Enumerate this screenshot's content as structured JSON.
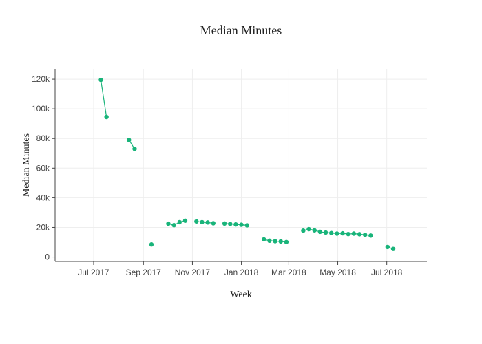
{
  "chart_data": {
    "type": "line",
    "title": "Median Minutes",
    "xlabel": "Week",
    "ylabel": "Median Minutes",
    "color": "#19b47a",
    "grid": true,
    "legend": "none",
    "xlim": [
      "2017-05-14",
      "2018-08-20"
    ],
    "ylim": [
      -3000,
      127000
    ],
    "x_ticks": [
      {
        "date": "2017-07-01",
        "label": "Jul 2017"
      },
      {
        "date": "2017-09-01",
        "label": "Sep 2017"
      },
      {
        "date": "2017-11-01",
        "label": "Nov 2017"
      },
      {
        "date": "2018-01-01",
        "label": "Jan 2018"
      },
      {
        "date": "2018-03-01",
        "label": "Mar 2018"
      },
      {
        "date": "2018-05-01",
        "label": "May 2018"
      },
      {
        "date": "2018-07-01",
        "label": "Jul 2018"
      }
    ],
    "y_ticks": [
      {
        "value": 0,
        "label": "0"
      },
      {
        "value": 20000,
        "label": "20k"
      },
      {
        "value": 40000,
        "label": "40k"
      },
      {
        "value": 60000,
        "label": "60k"
      },
      {
        "value": 80000,
        "label": "80k"
      },
      {
        "value": 100000,
        "label": "100k"
      },
      {
        "value": 120000,
        "label": "120k"
      }
    ],
    "segments": [
      [
        {
          "x": "2017-07-10",
          "y": 119500
        },
        {
          "x": "2017-07-17",
          "y": 94500
        }
      ],
      [
        {
          "x": "2017-08-14",
          "y": 79000
        },
        {
          "x": "2017-08-21",
          "y": 73000
        }
      ],
      [
        {
          "x": "2017-09-11",
          "y": 8500
        }
      ],
      [
        {
          "x": "2017-10-02",
          "y": 22500
        },
        {
          "x": "2017-10-09",
          "y": 21500
        },
        {
          "x": "2017-10-16",
          "y": 23500
        },
        {
          "x": "2017-10-23",
          "y": 24500
        }
      ],
      [
        {
          "x": "2017-11-06",
          "y": 24000
        },
        {
          "x": "2017-11-13",
          "y": 23500
        },
        {
          "x": "2017-11-20",
          "y": 23300
        },
        {
          "x": "2017-11-27",
          "y": 22800
        }
      ],
      [
        {
          "x": "2017-12-11",
          "y": 22600
        },
        {
          "x": "2017-12-18",
          "y": 22300
        },
        {
          "x": "2017-12-25",
          "y": 22000
        },
        {
          "x": "2018-01-01",
          "y": 21800
        },
        {
          "x": "2018-01-08",
          "y": 21400
        }
      ],
      [
        {
          "x": "2018-01-29",
          "y": 11900
        },
        {
          "x": "2018-02-05",
          "y": 11000
        },
        {
          "x": "2018-02-12",
          "y": 10700
        },
        {
          "x": "2018-02-19",
          "y": 10500
        },
        {
          "x": "2018-02-26",
          "y": 10100
        }
      ],
      [
        {
          "x": "2018-03-19",
          "y": 17800
        },
        {
          "x": "2018-03-26",
          "y": 18800
        },
        {
          "x": "2018-04-02",
          "y": 18000
        },
        {
          "x": "2018-04-09",
          "y": 17000
        },
        {
          "x": "2018-04-16",
          "y": 16500
        },
        {
          "x": "2018-04-23",
          "y": 16200
        },
        {
          "x": "2018-04-30",
          "y": 15800
        },
        {
          "x": "2018-05-07",
          "y": 16000
        },
        {
          "x": "2018-05-14",
          "y": 15500
        },
        {
          "x": "2018-05-21",
          "y": 15800
        },
        {
          "x": "2018-05-28",
          "y": 15400
        },
        {
          "x": "2018-06-04",
          "y": 15000
        },
        {
          "x": "2018-06-11",
          "y": 14500
        }
      ],
      [
        {
          "x": "2018-07-02",
          "y": 6800
        },
        {
          "x": "2018-07-09",
          "y": 5500
        }
      ]
    ]
  }
}
